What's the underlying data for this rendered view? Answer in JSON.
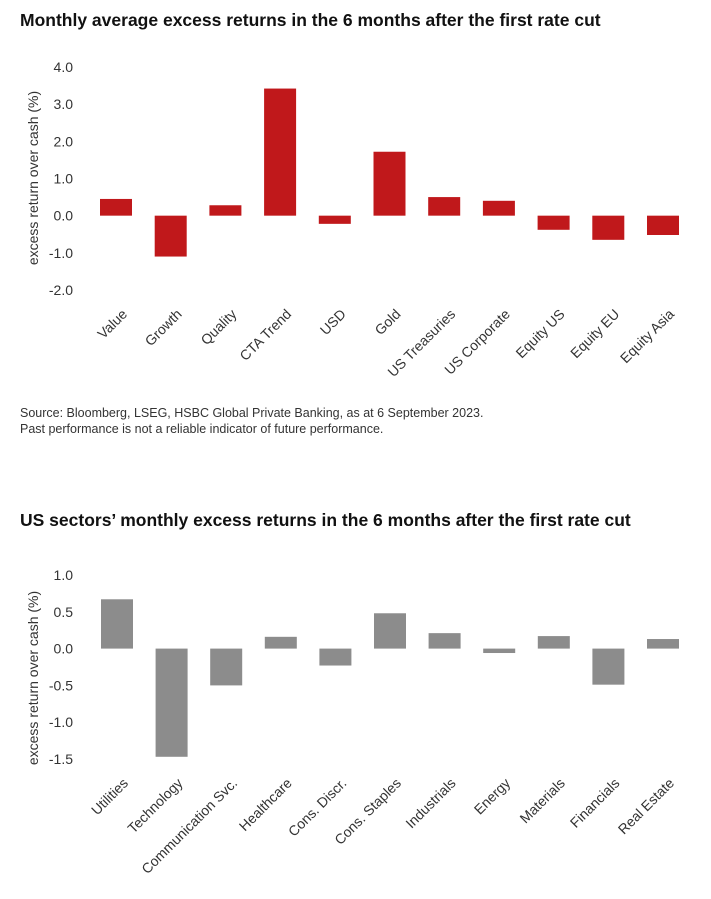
{
  "chart_data": [
    {
      "type": "bar",
      "title": "Monthly average excess returns in the 6 months after the first rate cut",
      "ylabel": "excess return over cash (%)",
      "xlabel": "",
      "ylim": [
        -2.0,
        4.0
      ],
      "yticks": [
        "4.0",
        "3.0",
        "2.0",
        "1.0",
        "0.0",
        "-1.0",
        "-2.0"
      ],
      "ytick_values": [
        4.0,
        3.0,
        2.0,
        1.0,
        0.0,
        -1.0,
        -2.0
      ],
      "categories": [
        "Value",
        "Growth",
        "Quality",
        "CTA Trend",
        "USD",
        "Gold",
        "US Treasuries",
        "US Corporate",
        "Equity US",
        "Equity EU",
        "Equity Asia"
      ],
      "values": [
        0.45,
        -1.1,
        0.28,
        3.42,
        -0.22,
        1.72,
        0.5,
        0.4,
        -0.38,
        -0.65,
        -0.52
      ],
      "color": "#c0181b"
    },
    {
      "type": "bar",
      "title": "US sectors’ monthly excess returns in the 6 months after the first rate cut",
      "ylabel": "excess return over cash (%)",
      "xlabel": "",
      "ylim": [
        -1.5,
        1.0
      ],
      "yticks": [
        "1.0",
        "0.5",
        "0.0",
        "-0.5",
        "-1.0",
        "-1.5"
      ],
      "ytick_values": [
        1.0,
        0.5,
        0.0,
        -0.5,
        -1.0,
        -1.5
      ],
      "categories": [
        "Utilities",
        "Technology",
        "Communication Svc.",
        "Healthcare",
        "Cons. Discr.",
        "Cons. Staples",
        "Industrials",
        "Energy",
        "Materials",
        "Financials",
        "Real Estate"
      ],
      "values": [
        0.67,
        -1.47,
        -0.5,
        0.16,
        -0.23,
        0.48,
        0.21,
        -0.06,
        0.17,
        -0.49,
        0.13
      ],
      "color": "#8c8c8c"
    }
  ],
  "source": {
    "line1": "Source: Bloomberg, LSEG, HSBC Global Private Banking, as at 6 September 2023.",
    "line2": "Past performance is not a reliable indicator of future performance."
  }
}
